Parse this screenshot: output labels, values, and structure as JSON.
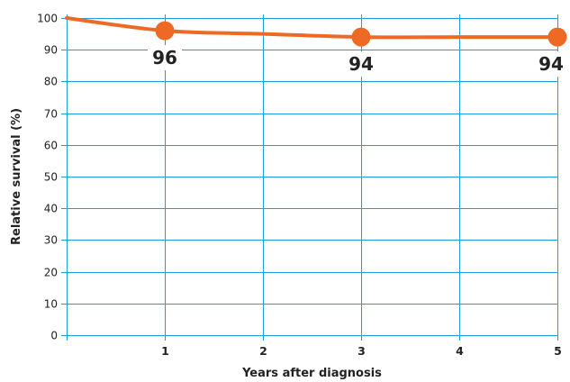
{
  "chart_data": {
    "type": "line",
    "title": "",
    "xlabel": "Years after diagnosis",
    "ylabel": "Relative survival (%)",
    "x_ticks": [
      "1",
      "2",
      "3",
      "4",
      "5"
    ],
    "y_ticks": [
      "0",
      "10",
      "20",
      "30",
      "40",
      "50",
      "60",
      "70",
      "80",
      "90",
      "100"
    ],
    "xlim": [
      0,
      5
    ],
    "ylim": [
      0,
      100
    ],
    "grid": true,
    "line_color": "#ee6a24",
    "grid_color": "#1aa0dc",
    "series": [
      {
        "x": [
          0,
          1,
          2,
          3,
          4,
          5
        ],
        "y": [
          100,
          96,
          95,
          94,
          94,
          94
        ],
        "markers_at": [
          1,
          3,
          5
        ]
      }
    ],
    "data_labels": [
      {
        "x": 1,
        "y": 96,
        "text": "96"
      },
      {
        "x": 3,
        "y": 94,
        "text": "94"
      },
      {
        "x": 5,
        "y": 94,
        "text": "94"
      }
    ]
  }
}
